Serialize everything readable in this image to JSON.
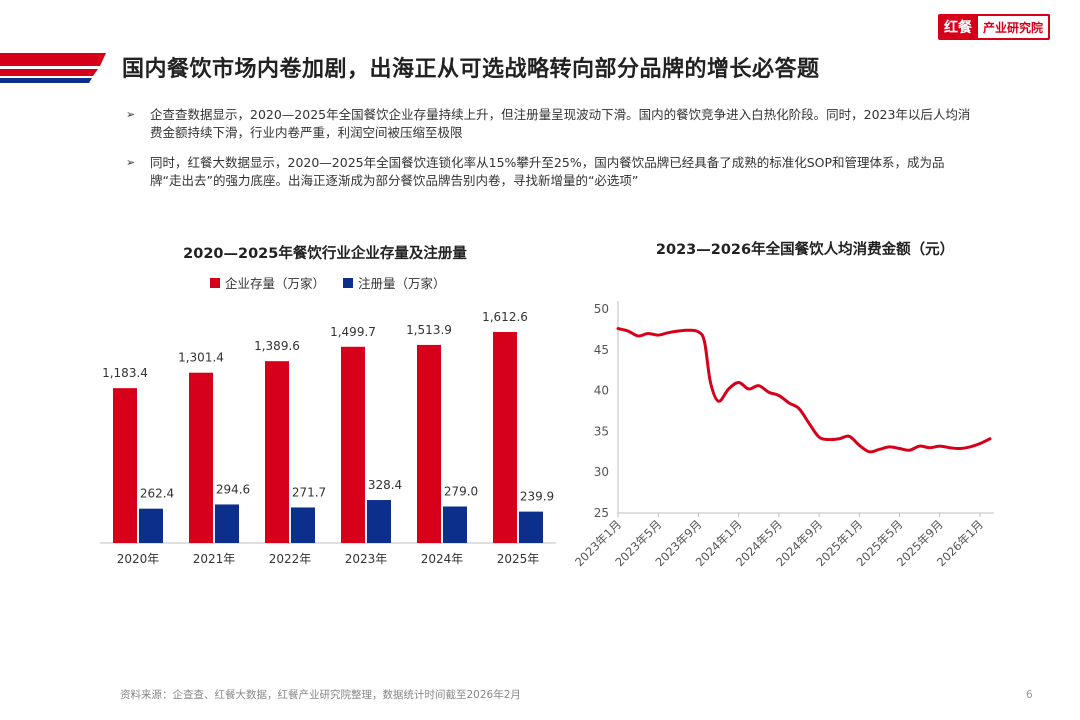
{
  "logo": {
    "brand": "红餐",
    "sub": "产业研究院"
  },
  "page_title": "国内餐饮市场内卷加剧，出海正从可选战略转向部分品牌的增长必答题",
  "bullets": [
    "企查查数据显示，2020—2025年全国餐饮企业存量持续上升，但注册量呈现波动下滑。国内的餐饮竞争进入白热化阶段。同时，2023年以后人均消费金额持续下滑，行业内卷严重，利润空间被压缩至极限",
    "同时，红餐大数据显示，2020—2025年全国餐饮连锁化率从15%攀升至25%，国内餐饮品牌已经具备了成熟的标准化SOP和管理体系，成为品牌“走出去”的强力底座。出海正逐渐成为部分餐饮品牌告别内卷，寻找新增量的“必选项”"
  ],
  "bullet_symbol": "➢",
  "colors": {
    "accent_red": "#d7001a",
    "navy": "#0d2f8c",
    "line_red": "#d7001a"
  },
  "chart_data": [
    {
      "type": "bar",
      "title": "2020—2025年餐饮行业企业存量及注册量",
      "categories": [
        "2020年",
        "2021年",
        "2022年",
        "2023年",
        "2024年",
        "2025年"
      ],
      "series": [
        {
          "name": "企业存量（万家）",
          "values": [
            1183.4,
            1301.4,
            1389.6,
            1499.7,
            1513.9,
            1612.6
          ],
          "labels": [
            "1,183.4",
            "1,301.4",
            "1,389.6",
            "1,499.7",
            "1,513.9",
            "1,612.6"
          ],
          "color": "#d7001a"
        },
        {
          "name": "注册量（万家）",
          "values": [
            262.4,
            294.6,
            271.7,
            328.4,
            279.0,
            239.9
          ],
          "labels": [
            "262.4",
            "294.6",
            "271.7",
            "328.4",
            "279.0",
            "239.9"
          ],
          "color": "#0d2f8c"
        }
      ],
      "grid": false,
      "legend": "top"
    },
    {
      "type": "line",
      "title": "2023—2026年全国餐饮人均消费金额（元）",
      "x_tick_labels": [
        "2023年1月",
        "2023年5月",
        "2023年9月",
        "2024年1月",
        "2024年5月",
        "2024年9月",
        "2025年1月",
        "2025年5月",
        "2025年9月",
        "2026年1月"
      ],
      "y_ticks": [
        "50",
        "45",
        "40",
        "35",
        "30",
        "25"
      ],
      "ylim": [
        25,
        50
      ],
      "x_month_index_range": [
        0,
        37
      ],
      "series": [
        {
          "values": [
            [
              0,
              47.6
            ],
            [
              1,
              47.3
            ],
            [
              2,
              46.7
            ],
            [
              3,
              47.0
            ],
            [
              4,
              46.8
            ],
            [
              5,
              47.1
            ],
            [
              6,
              47.3
            ],
            [
              7,
              47.4
            ],
            [
              8,
              47.2
            ],
            [
              8.6,
              46.0
            ],
            [
              9.2,
              41.0
            ],
            [
              10,
              38.7
            ],
            [
              11,
              40.2
            ],
            [
              12,
              41.0
            ],
            [
              13,
              40.2
            ],
            [
              14,
              40.6
            ],
            [
              15,
              39.8
            ],
            [
              16,
              39.4
            ],
            [
              17,
              38.5
            ],
            [
              18,
              37.8
            ],
            [
              19,
              36.0
            ],
            [
              20,
              34.3
            ],
            [
              21,
              34.0
            ],
            [
              22,
              34.1
            ],
            [
              23,
              34.4
            ],
            [
              24,
              33.3
            ],
            [
              25,
              32.5
            ],
            [
              26,
              32.8
            ],
            [
              27,
              33.1
            ],
            [
              28,
              32.9
            ],
            [
              29,
              32.7
            ],
            [
              30,
              33.2
            ],
            [
              31,
              33.0
            ],
            [
              32,
              33.2
            ],
            [
              33,
              33.0
            ],
            [
              34,
              32.9
            ],
            [
              35,
              33.1
            ],
            [
              36,
              33.5
            ],
            [
              37,
              34.1
            ]
          ],
          "color": "#d7001a"
        }
      ],
      "grid": false
    }
  ],
  "footer": {
    "source": "资料来源：企查查、红餐大数据，红餐产业研究院整理，数据统计时间截至2026年2月",
    "page": "6"
  }
}
